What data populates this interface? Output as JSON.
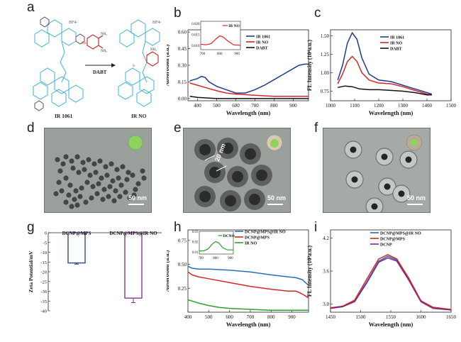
{
  "panels": {
    "a": {
      "letter": "a",
      "scheme": {
        "reactant": "IR 1061",
        "product": "IR NO",
        "reagent": "DABT",
        "group": "BF4-"
      }
    },
    "b": {
      "letter": "b"
    },
    "c": {
      "letter": "c"
    },
    "d": {
      "letter": "d",
      "scale": "50 nm"
    },
    "e": {
      "letter": "e",
      "scale": "50 nm",
      "dimension": "20 nm"
    },
    "f": {
      "letter": "f",
      "scale": "50 nm"
    },
    "g": {
      "letter": "g"
    },
    "h": {
      "letter": "h"
    },
    "i": {
      "letter": "i"
    }
  },
  "chart_data": [
    {
      "id": "b",
      "type": "line",
      "xlabel": "Wavelength (nm)",
      "ylabel": "Absorbtion (a.u.)",
      "xlim": [
        350,
        980
      ],
      "ylim": [
        -0.02,
        0.62
      ],
      "xticks": [
        400,
        500,
        600,
        700,
        800,
        900
      ],
      "yticks": [
        0.0,
        0.15,
        0.3,
        0.45,
        0.6
      ],
      "legend_position": "right",
      "series": [
        {
          "name": "IR 1061",
          "color": "#1f3b8c",
          "x": [
            360,
            380,
            400,
            420,
            440,
            460,
            500,
            550,
            600,
            650,
            700,
            750,
            800,
            850,
            900,
            930,
            960,
            980
          ],
          "y": [
            0.16,
            0.17,
            0.18,
            0.2,
            0.19,
            0.15,
            0.11,
            0.08,
            0.05,
            0.05,
            0.08,
            0.12,
            0.17,
            0.22,
            0.27,
            0.3,
            0.31,
            0.31
          ]
        },
        {
          "name": "IR NO",
          "color": "#d62728",
          "x": [
            360,
            400,
            440,
            500,
            550,
            600,
            700,
            800,
            900,
            980
          ],
          "y": [
            0.14,
            0.12,
            0.1,
            0.07,
            0.05,
            0.04,
            0.03,
            0.02,
            0.02,
            0.02
          ]
        },
        {
          "name": "DABT",
          "color": "#111111",
          "x": [
            360,
            400,
            500,
            600,
            700,
            800,
            900,
            980
          ],
          "y": [
            0.02,
            0.01,
            0.0,
            0.0,
            0.0,
            0.0,
            0.0,
            0.0
          ]
        }
      ],
      "inset": {
        "title": "IR NO",
        "xlim": [
          690,
          920
        ],
        "ylim": [
          0.008,
          0.021
        ],
        "xticks": [
          700,
          800,
          900
        ],
        "yticks": [
          0.01,
          0.015,
          0.02
        ],
        "x": [
          690,
          720,
          750,
          780,
          800,
          820,
          850,
          880,
          920
        ],
        "y": [
          0.0105,
          0.0102,
          0.0108,
          0.013,
          0.0143,
          0.0138,
          0.0118,
          0.0102,
          0.01
        ],
        "color": "#d62728"
      }
    },
    {
      "id": "c",
      "type": "line",
      "xlabel": "Wavelength (nm)",
      "ylabel": "FL Intensity (10⁴a.u.)",
      "xlim": [
        1000,
        1500
      ],
      "ylim": [
        0.62,
        1.58
      ],
      "xticks": [
        1000,
        1100,
        1200,
        1300,
        1400,
        1500
      ],
      "yticks": [
        0.75,
        1.0,
        1.25,
        1.5
      ],
      "legend_position": "top-right",
      "series": [
        {
          "name": "IR 1061",
          "color": "#1f3b8c",
          "x": [
            1030,
            1050,
            1070,
            1090,
            1110,
            1130,
            1160,
            1200,
            1250,
            1300,
            1350,
            1400,
            1420
          ],
          "y": [
            0.9,
            1.1,
            1.4,
            1.54,
            1.45,
            1.2,
            0.98,
            0.9,
            0.88,
            0.83,
            0.78,
            0.73,
            0.71
          ]
        },
        {
          "name": "IR NO",
          "color": "#d62728",
          "x": [
            1030,
            1050,
            1070,
            1090,
            1110,
            1130,
            1160,
            1200,
            1250,
            1300,
            1350,
            1400,
            1420
          ],
          "y": [
            0.85,
            0.98,
            1.15,
            1.22,
            1.15,
            1.0,
            0.9,
            0.86,
            0.85,
            0.81,
            0.76,
            0.71,
            0.7
          ]
        },
        {
          "name": "DABT",
          "color": "#111111",
          "x": [
            1030,
            1060,
            1090,
            1120,
            1160,
            1200,
            1250,
            1300,
            1350,
            1400,
            1420
          ],
          "y": [
            0.8,
            0.82,
            0.81,
            0.78,
            0.77,
            0.77,
            0.76,
            0.75,
            0.73,
            0.7,
            0.7
          ]
        }
      ]
    },
    {
      "id": "g",
      "type": "bar",
      "ylabel": "Zeta Potential/mV",
      "ylim": [
        -40,
        0
      ],
      "yticks": [
        0,
        -5,
        -10,
        -15,
        -20,
        -25,
        -30,
        -35,
        -40
      ],
      "categories": [
        "DCNP@MPS",
        "DCNP@MPS@IR NO"
      ],
      "values": [
        -15.5,
        -33.5
      ],
      "errors": [
        0.6,
        2.3
      ],
      "colors": [
        "#1f3b8c",
        "#7b2a8c"
      ]
    },
    {
      "id": "h",
      "type": "line",
      "xlabel": "Wavelength (nm)",
      "ylabel": "Absorbtion (a.u.)",
      "xlim": [
        400,
        980
      ],
      "ylim": [
        0.0,
        0.86
      ],
      "xticks": [
        400,
        500,
        600,
        700,
        800,
        900
      ],
      "yticks": [
        0.25,
        0.5,
        0.75
      ],
      "legend_position": "top-right",
      "series": [
        {
          "name": "DCNP@MPS@IR NO",
          "color": "#2c6db5",
          "x": [
            400,
            420,
            450,
            500,
            600,
            700,
            800,
            880,
            920,
            950,
            980
          ],
          "y": [
            0.48,
            0.46,
            0.45,
            0.45,
            0.44,
            0.42,
            0.39,
            0.37,
            0.36,
            0.34,
            0.28
          ]
        },
        {
          "name": "DCNP@MPS",
          "color": "#d62728",
          "x": [
            400,
            420,
            450,
            500,
            600,
            700,
            800,
            880,
            920,
            950,
            980
          ],
          "y": [
            0.42,
            0.39,
            0.37,
            0.35,
            0.31,
            0.27,
            0.24,
            0.22,
            0.22,
            0.19,
            0.15
          ]
        },
        {
          "name": "IR NO",
          "color": "#2ca02c",
          "x": [
            400,
            430,
            460,
            500,
            550,
            600,
            700,
            800,
            900,
            980
          ],
          "y": [
            0.13,
            0.11,
            0.09,
            0.07,
            0.05,
            0.04,
            0.03,
            0.02,
            0.02,
            0.02
          ]
        }
      ],
      "inset": {
        "title": "DCNO",
        "xlim": [
          690,
          920
        ],
        "ylim": [
          0.008,
          0.03
        ],
        "xticks": [
          700,
          800,
          900
        ],
        "yticks": [
          0.01,
          0.02,
          0.03
        ],
        "x": [
          690,
          720,
          750,
          780,
          800,
          820,
          850,
          880,
          920
        ],
        "y": [
          0.011,
          0.011,
          0.013,
          0.018,
          0.02,
          0.019,
          0.014,
          0.012,
          0.012
        ],
        "color": "#2ca02c"
      }
    },
    {
      "id": "i",
      "type": "line",
      "xlabel": "Wavelength (nm)",
      "ylabel": "FL Intensity (10³a.u.)",
      "xlim": [
        1450,
        1650
      ],
      "ylim": [
        2.85,
        4.35
      ],
      "xticks": [
        1450,
        1500,
        1550,
        1600,
        1650
      ],
      "yticks": [
        3.0,
        3.6,
        4.2
      ],
      "legend_position": "top-right",
      "series": [
        {
          "name": "DCNP@MPS@IR NO",
          "color": "#2c6db5",
          "x": [
            1450,
            1470,
            1490,
            1510,
            1530,
            1545,
            1560,
            1580,
            1600,
            1620,
            1650
          ],
          "y": [
            2.92,
            2.95,
            3.05,
            3.4,
            3.78,
            3.87,
            3.8,
            3.45,
            3.05,
            2.93,
            2.9
          ]
        },
        {
          "name": "DCNP@MPS",
          "color": "#d62728",
          "x": [
            1450,
            1470,
            1490,
            1510,
            1530,
            1545,
            1560,
            1580,
            1600,
            1620,
            1650
          ],
          "y": [
            2.93,
            2.96,
            3.07,
            3.45,
            3.82,
            3.9,
            3.82,
            3.47,
            3.06,
            2.94,
            2.9
          ]
        },
        {
          "name": "DCNP",
          "color": "#7b2a8c",
          "x": [
            1450,
            1470,
            1490,
            1510,
            1530,
            1545,
            1560,
            1580,
            1600,
            1620,
            1650
          ],
          "y": [
            2.92,
            2.95,
            3.04,
            3.38,
            3.76,
            3.84,
            3.78,
            3.43,
            3.04,
            2.92,
            2.89
          ]
        }
      ]
    }
  ]
}
